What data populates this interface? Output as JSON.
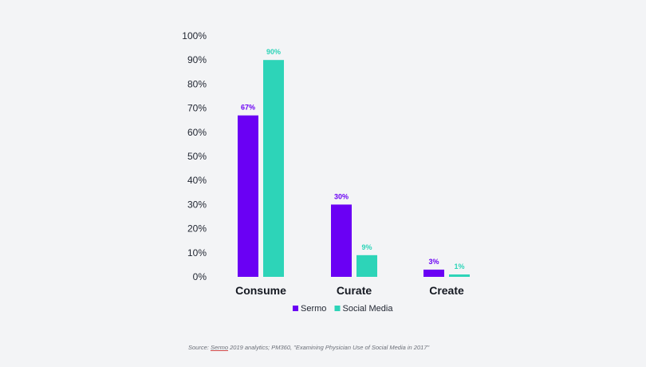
{
  "chart_data": {
    "type": "bar",
    "categories": [
      "Consume",
      "Curate",
      "Create"
    ],
    "series": [
      {
        "name": "Sermo",
        "values": [
          67,
          30,
          3
        ],
        "labels": [
          "67%",
          "30%",
          "3%"
        ],
        "color": "#6a00f4"
      },
      {
        "name": "Social Media",
        "values": [
          90,
          9,
          1
        ],
        "labels": [
          "90%",
          "9%",
          "1%"
        ],
        "color": "#2dd4b8"
      }
    ],
    "ylim": [
      0,
      100
    ],
    "yticks": [
      0,
      10,
      20,
      30,
      40,
      50,
      60,
      70,
      80,
      90,
      100
    ],
    "ytick_labels": [
      "0%",
      "10%",
      "20%",
      "30%",
      "40%",
      "50%",
      "60%",
      "70%",
      "80%",
      "90%",
      "100%"
    ],
    "title": "",
    "xlabel": "",
    "ylabel": "",
    "grid": false,
    "legend": "bottom-center"
  },
  "source": {
    "prefix": "Source: ",
    "link_text": "Sermo",
    "rest": " 2019 analytics; PM360, \"Examining Physician Use of Social Media in 2017\""
  }
}
